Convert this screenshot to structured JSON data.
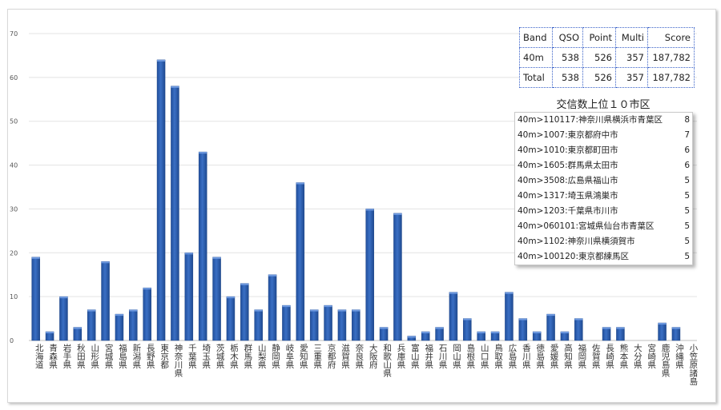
{
  "score_table": {
    "headers": [
      "Band",
      "QSO",
      "Point",
      "Multi",
      "Score"
    ],
    "rows": [
      [
        "40m",
        "538",
        "526",
        "357",
        "187,782"
      ],
      [
        "Total",
        "538",
        "526",
        "357",
        "187,782"
      ]
    ]
  },
  "top_cities": {
    "title": "交信数上位１０市区",
    "items": [
      {
        "label": "40m>110117:神奈川県横浜市青葉区",
        "count": "8"
      },
      {
        "label": "40m>1007:東京都府中市",
        "count": "7"
      },
      {
        "label": "40m>1010:東京都町田市",
        "count": "6"
      },
      {
        "label": "40m>1605:群馬県太田市",
        "count": "6"
      },
      {
        "label": "40m>3508:広島県福山市",
        "count": "5"
      },
      {
        "label": "40m>1317:埼玉県鴻巣市",
        "count": "5"
      },
      {
        "label": "40m>1203:千葉県市川市",
        "count": "5"
      },
      {
        "label": "40m>060101:宮城県仙台市青葉区",
        "count": "5"
      },
      {
        "label": "40m>1102:神奈川県横須賀市",
        "count": "5"
      },
      {
        "label": "40m>100120:東京都練馬区",
        "count": "5"
      }
    ]
  },
  "chart_data": {
    "type": "bar",
    "categories": [
      "北海道",
      "青森県",
      "岩手県",
      "秋田県",
      "山形県",
      "宮城県",
      "福島県",
      "新潟県",
      "長野県",
      "東京都",
      "神奈川県",
      "千葉県",
      "埼玉県",
      "茨城県",
      "栃木県",
      "群馬県",
      "山梨県",
      "静岡県",
      "岐阜県",
      "愛知県",
      "三重県",
      "京都府",
      "滋賀県",
      "奈良県",
      "大阪府",
      "和歌山県",
      "兵庫県",
      "富山県",
      "福井県",
      "石川県",
      "岡山県",
      "島根県",
      "山口県",
      "鳥取県",
      "広島県",
      "香川県",
      "徳島県",
      "愛媛県",
      "高知県",
      "福岡県",
      "佐賀県",
      "長崎県",
      "熊本県",
      "大分県",
      "宮崎県",
      "鹿児島県",
      "沖縄県",
      "小笠原諸島"
    ],
    "values": [
      19,
      2,
      10,
      3,
      7,
      18,
      6,
      7,
      12,
      64,
      58,
      20,
      43,
      19,
      10,
      13,
      7,
      15,
      8,
      36,
      7,
      8,
      7,
      7,
      30,
      3,
      29,
      1,
      2,
      3,
      11,
      5,
      2,
      2,
      11,
      5,
      2,
      6,
      2,
      5,
      0,
      3,
      3,
      0,
      0,
      4,
      3,
      0
    ],
    "yticks": [
      "0",
      "10",
      "20",
      "30",
      "40",
      "50",
      "60",
      "70"
    ],
    "ylim": [
      0,
      70
    ],
    "grid": true,
    "bar_color": "#3a6fc4"
  }
}
